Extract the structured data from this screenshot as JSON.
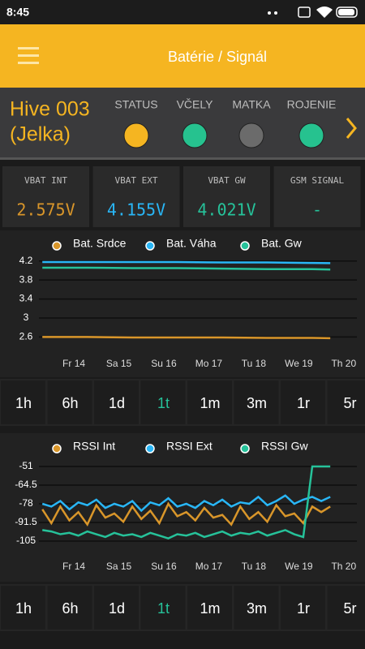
{
  "status_bar": {
    "time": "8:45"
  },
  "app_bar": {
    "title": "Batérie / Signál"
  },
  "hive": {
    "name": "Hive 003",
    "alias": "(Jelka)",
    "indicators": [
      {
        "label": "STATUS",
        "color": "#f5b521"
      },
      {
        "label": "VČELY",
        "color": "#26c28f"
      },
      {
        "label": "MATKA",
        "color": "#6b6b6b"
      },
      {
        "label": "ROJENIE",
        "color": "#26c28f"
      }
    ]
  },
  "cards": [
    {
      "label": "VBAT INT",
      "value": "2.575V",
      "color": "#d9962a"
    },
    {
      "label": "VBAT EXT",
      "value": "4.155V",
      "color": "#29b6f6"
    },
    {
      "label": "VBAT GW",
      "value": "4.021V",
      "color": "#26c29a"
    },
    {
      "label": "GSM SIGNAL",
      "value": "-",
      "color": "#26c29a"
    }
  ],
  "chart_data": [
    {
      "type": "line",
      "x": [
        13.3,
        14.3,
        15.3,
        16.3,
        17.3,
        18.3,
        19.3,
        19.7
      ],
      "series": [
        {
          "name": "Bat. Srdce",
          "color": "#d9962a",
          "values": [
            2.6,
            2.6,
            2.59,
            2.59,
            2.59,
            2.58,
            2.58,
            2.575
          ]
        },
        {
          "name": "Bat. Váha",
          "color": "#29b6f6",
          "values": [
            4.18,
            4.18,
            4.18,
            4.18,
            4.17,
            4.17,
            4.16,
            4.155
          ]
        },
        {
          "name": "Bat. Gw",
          "color": "#26c29a",
          "values": [
            4.06,
            4.06,
            4.05,
            4.05,
            4.04,
            4.03,
            4.03,
            4.021
          ]
        }
      ],
      "xlim": [
        13.26,
        20.4
      ],
      "xticks": [
        {
          "value": 14,
          "label": "Fr 14"
        },
        {
          "value": 15,
          "label": "Sa 15"
        },
        {
          "value": 16,
          "label": "Su 16"
        },
        {
          "value": 17,
          "label": "Mo 17"
        },
        {
          "value": 18,
          "label": "Tu 18"
        },
        {
          "value": 19,
          "label": "We 19"
        },
        {
          "value": 20,
          "label": "Th 20"
        }
      ],
      "ylim": [
        2.35,
        4.35
      ],
      "yticks": [
        2.6,
        3,
        3.4,
        3.8,
        4.2
      ],
      "grid": true
    },
    {
      "type": "line",
      "x": [
        13.3,
        13.5,
        13.7,
        13.9,
        14.1,
        14.3,
        14.5,
        14.7,
        14.9,
        15.1,
        15.3,
        15.5,
        15.7,
        15.9,
        16.1,
        16.3,
        16.5,
        16.7,
        16.9,
        17.1,
        17.3,
        17.5,
        17.7,
        17.9,
        18.1,
        18.3,
        18.5,
        18.7,
        18.9,
        19.1,
        19.3,
        19.5,
        19.7
      ],
      "series": [
        {
          "name": "RSSI Int",
          "color": "#d9962a",
          "values": [
            -82,
            -92,
            -80,
            -90,
            -84,
            -93,
            -79,
            -88,
            -85,
            -91,
            -80,
            -89,
            -83,
            -92,
            -78,
            -87,
            -84,
            -90,
            -81,
            -88,
            -86,
            -93,
            -80,
            -89,
            -84,
            -91,
            -79,
            -87,
            -85,
            -92,
            -80,
            -84,
            -80
          ]
        },
        {
          "name": "RSSI Ext",
          "color": "#29b6f6",
          "values": [
            -78,
            -80,
            -76,
            -82,
            -77,
            -79,
            -75,
            -81,
            -78,
            -80,
            -76,
            -83,
            -77,
            -79,
            -74,
            -80,
            -78,
            -81,
            -76,
            -79,
            -75,
            -80,
            -77,
            -78,
            -73,
            -79,
            -76,
            -72,
            -78,
            -75,
            -73,
            -76,
            -73
          ]
        },
        {
          "name": "RSSI Gw",
          "color": "#26c29a",
          "values": [
            -97,
            -98,
            -100,
            -99,
            -101,
            -98,
            -100,
            -102,
            -99,
            -101,
            -100,
            -102,
            -99,
            -101,
            -103,
            -100,
            -101,
            -99,
            -102,
            -100,
            -98,
            -101,
            -99,
            -100,
            -98,
            -101,
            -99,
            -97,
            -100,
            -102,
            -51,
            -51,
            -51
          ]
        }
      ],
      "xlim": [
        13.26,
        20.4
      ],
      "xticks": [
        {
          "value": 14,
          "label": "Fr 14"
        },
        {
          "value": 15,
          "label": "Sa 15"
        },
        {
          "value": 16,
          "label": "Su 16"
        },
        {
          "value": 17,
          "label": "Mo 17"
        },
        {
          "value": 18,
          "label": "Tu 18"
        },
        {
          "value": 19,
          "label": "We 19"
        },
        {
          "value": 20,
          "label": "Th 20"
        }
      ],
      "ylim": [
        -112,
        -44
      ],
      "yticks": [
        -105,
        -91.5,
        -78,
        -64.5,
        -51
      ],
      "grid": true
    }
  ],
  "range_buttons": [
    {
      "options": [
        "1h",
        "6h",
        "1d",
        "1t",
        "1m",
        "3m",
        "1r",
        "5r"
      ],
      "selected": 3
    },
    {
      "options": [
        "1h",
        "6h",
        "1d",
        "1t",
        "1m",
        "3m",
        "1r",
        "5r"
      ],
      "selected": 3
    }
  ]
}
